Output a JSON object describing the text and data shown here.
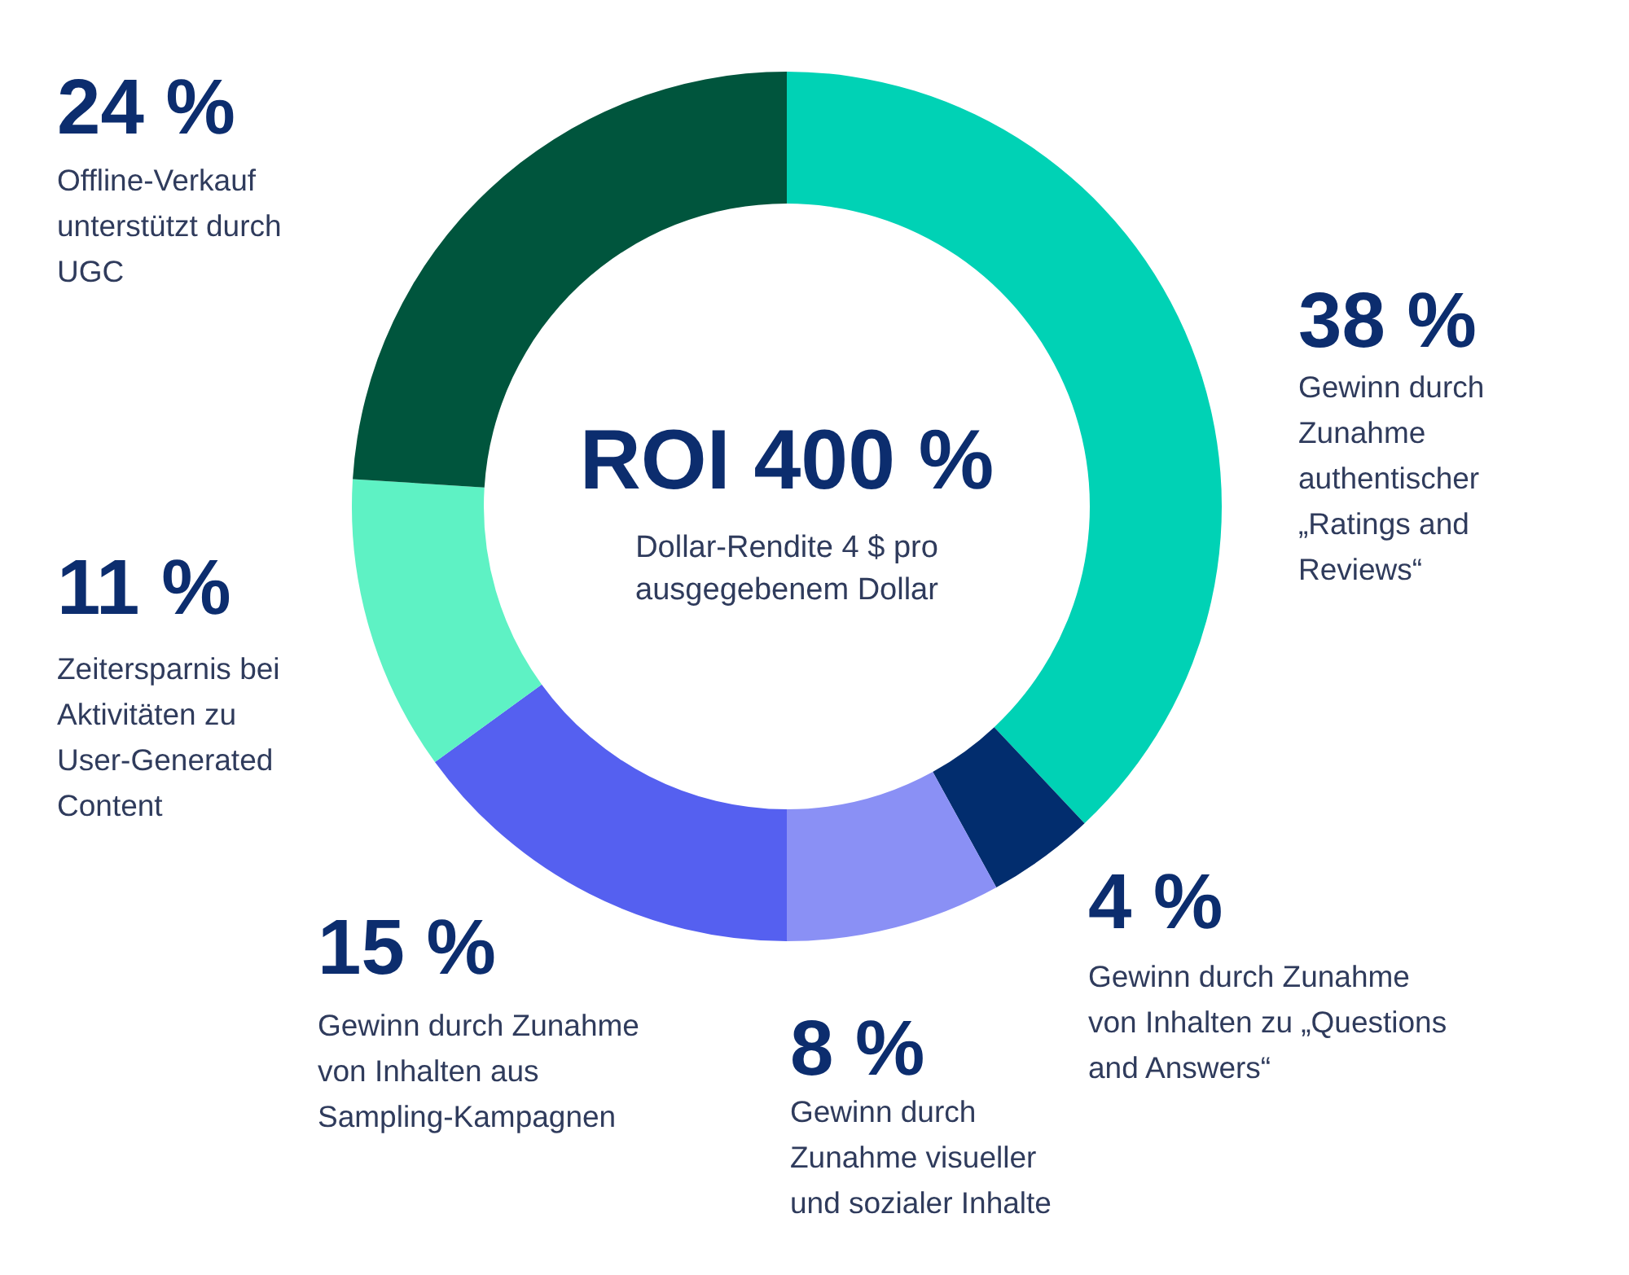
{
  "chart_data": {
    "type": "donut",
    "title": "ROI 400 %",
    "subtitle": "Dollar-Rendite 4 $ pro ausgegebenem Dollar",
    "categories": [
      "Gewinn durch Zunahme authentischer „Ratings and Reviews“",
      "Gewinn durch Zunahme von Inhalten zu „Questions and Answers“",
      "Gewinn durch Zunahme visueller und sozialer Inhalte",
      "Gewinn durch Zunahme von Inhalten aus Sampling-Kampagnen",
      "Zeitersparnis bei Aktivitäten zu User-Generated Content",
      "Offline-Verkauf unterstützt durch UGC"
    ],
    "values": [
      38,
      4,
      8,
      15,
      11,
      24
    ],
    "colors": [
      "#00d2b5",
      "#022d6e",
      "#8a90f5",
      "#5560f0",
      "#5ef2c4",
      "#00553d"
    ],
    "value_labels": [
      "38 %",
      "4 %",
      "8 %",
      "15 %",
      "11 %",
      "24 %"
    ]
  }
}
